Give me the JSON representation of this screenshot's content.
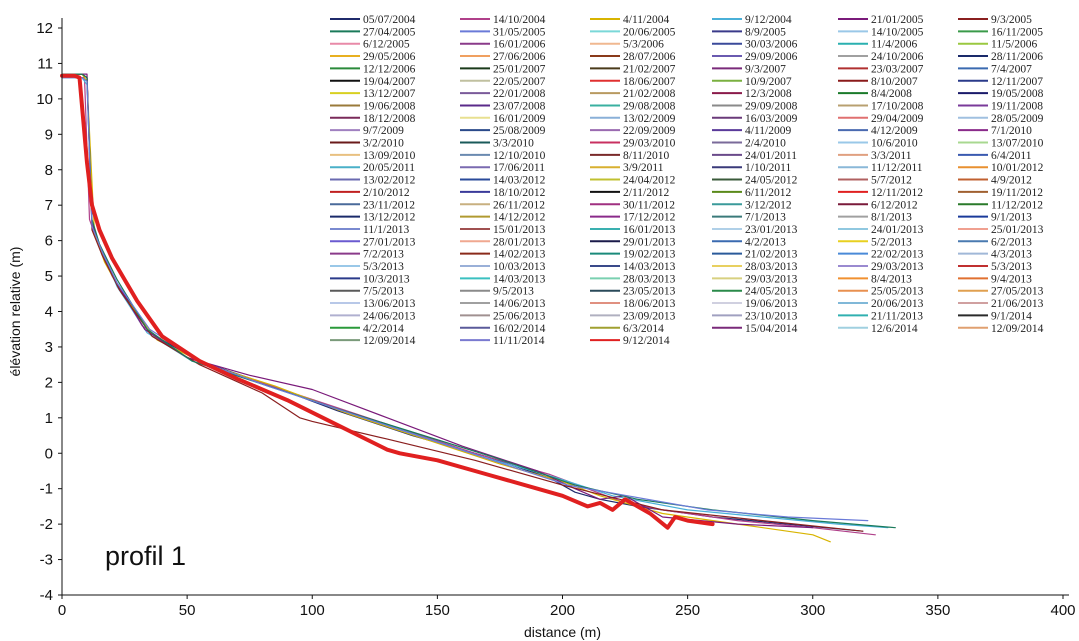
{
  "chart_data": {
    "type": "line",
    "xlabel": "distance (m)",
    "ylabel": "élévation relative (m)",
    "annotation": "profil 1",
    "xlim": [
      0,
      400
    ],
    "ylim": [
      -4,
      12
    ],
    "xticks": [
      0,
      50,
      100,
      150,
      200,
      250,
      300,
      350,
      400
    ],
    "yticks": [
      -4,
      -3,
      -2,
      -1,
      0,
      1,
      2,
      3,
      4,
      5,
      6,
      7,
      8,
      9,
      10,
      11,
      12
    ],
    "grid": false,
    "legend_position": "top-right",
    "legend_entries": [
      "05/07/2004",
      "14/10/2004",
      "4/11/2004",
      "9/12/2004",
      "21/01/2005",
      "9/3/2005",
      "27/04/2005",
      "31/05/2005",
      "20/06/2005",
      "8/9/2005",
      "14/10/2005",
      "16/11/2005",
      "6/12/2005",
      "16/01/2006",
      "5/3/2006",
      "30/03/2006",
      "11/4/2006",
      "11/5/2006",
      "29/05/2006",
      "27/06/2006",
      "28/07/2006",
      "29/09/2006",
      "24/10/2006",
      "28/11/2006",
      "12/12/2006",
      "25/01/2007",
      "21/02/2007",
      "9/3/2007",
      "23/03/2007",
      "7/4/2007",
      "19/04/2007",
      "22/05/2007",
      "18/06/2007",
      "10/9/2007",
      "8/10/2007",
      "12/11/2007",
      "13/12/2007",
      "22/01/2008",
      "21/02/2008",
      "12/3/2008",
      "8/4/2008",
      "19/05/2008",
      "19/06/2008",
      "23/07/2008",
      "29/08/2008",
      "29/09/2008",
      "17/10/2008",
      "19/11/2008",
      "18/12/2008",
      "16/01/2009",
      "13/02/2009",
      "16/03/2009",
      "29/04/2009",
      "28/05/2009",
      "9/7/2009",
      "25/08/2009",
      "22/09/2009",
      "4/11/2009",
      "4/12/2009",
      "7/1/2010",
      "3/2/2010",
      "3/3/2010",
      "29/03/2010",
      "2/4/2010",
      "10/6/2010",
      "13/07/2010",
      "13/09/2010",
      "12/10/2010",
      "8/11/2010",
      "24/01/2011",
      "3/3/2011",
      "6/4/2011",
      "20/05/2011",
      "17/06/2011",
      "3/9/2011",
      "1/10/2011",
      "11/12/2011",
      "10/01/2012",
      "13/02/2012",
      "14/03/2012",
      "24/04/2012",
      "24/05/2012",
      "5/7/2012",
      "4/9/2012",
      "2/10/2012",
      "18/10/2012",
      "2/11/2012",
      "6/11/2012",
      "12/11/2012",
      "19/11/2012",
      "23/11/2012",
      "26/11/2012",
      "30/11/2012",
      "3/12/2012",
      "6/12/2012",
      "11/12/2012",
      "13/12/2012",
      "14/12/2012",
      "17/12/2012",
      "7/1/2013",
      "8/1/2013",
      "9/1/2013",
      "11/1/2013",
      "15/01/2013",
      "16/01/2013",
      "23/01/2013",
      "24/01/2013",
      "25/01/2013",
      "27/01/2013",
      "28/01/2013",
      "29/01/2013",
      "4/2/2013",
      "5/2/2013",
      "6/2/2013",
      "7/2/2013",
      "14/02/2013",
      "19/02/2013",
      "21/02/2013",
      "22/02/2013",
      "4/3/2013",
      "5/3/2013",
      "10/03/2013",
      "14/03/2013",
      "28/03/2013",
      "29/03/2013",
      "5/3/2013",
      "10/3/2013",
      "14/03/2013",
      "28/03/2013",
      "29/03/2013",
      "8/4/2013",
      "9/4/2013",
      "7/5/2013",
      "9/5/2013",
      "23/05/2013",
      "24/05/2013",
      "25/05/2013",
      "27/05/2013",
      "13/06/2013",
      "14/06/2013",
      "18/06/2013",
      "19/06/2013",
      "20/06/2013",
      "21/06/2013",
      "24/06/2013",
      "25/06/2013",
      "23/09/2013",
      "23/10/2013",
      "21/11/2013",
      "9/1/2014",
      "4/2/2014",
      "16/02/2014",
      "6/3/2014",
      "15/04/2014",
      "12/6/2014",
      "12/09/2014",
      "12/09/2014",
      "11/11/2014",
      "9/12/2014"
    ],
    "legend_colors": [
      "#1f2a6b",
      "#b0408a",
      "#d8b400",
      "#4ab0d8",
      "#7a1a7a",
      "#8a1f1f",
      "#1a7a5a",
      "#6a7ad8",
      "#7ad8d8",
      "#3a3a8a",
      "#9ac8e8",
      "#3a9a4a",
      "#e88aa8",
      "#8a3a8a",
      "#f0b890",
      "#3a4a9a",
      "#2ab0b0",
      "#9ac840",
      "#e8b020",
      "#f0a060",
      "#8a3a1a",
      "#6a5ab0",
      "#a0a0a0",
      "#1a2a6a",
      "#2a8a3a",
      "#1a3a1a",
      "#4a3a1a",
      "#7a2a7a",
      "#b03030",
      "#3a6ab0",
      "#111111",
      "#c0c0a0",
      "#e03030",
      "#7ab040",
      "#8a1a1a",
      "#2a3a8a",
      "#d8d020",
      "#7a5a9a",
      "#b89a60",
      "#8a1a4a",
      "#1a7a2a",
      "#1a1a6a",
      "#9a7a3a",
      "#5a2a8a",
      "#3ab0a0",
      "#8a8a8a",
      "#b8a070",
      "#7a3a9a",
      "#7a2a5a",
      "#e8e090",
      "#8ab0d8",
      "#6a3a7a",
      "#e07070",
      "#a0c0e0",
      "#a080c0",
      "#2a4a8a",
      "#9a6ab0",
      "#5a3a9a",
      "#4a6ab0",
      "#8a2a8a",
      "#6a1a1a",
      "#1a5a5a",
      "#c83060",
      "#7a6a9a",
      "#9ac8e8",
      "#a8d890",
      "#e8c080",
      "#6a8ab0",
      "#7a2a2a",
      "#6a4a8a",
      "#e0a080",
      "#3a5ab0",
      "#4ab0c8",
      "#7a6ab0",
      "#d8b030",
      "#3a3a7a",
      "#8ab8d8",
      "#e89030",
      "#6a6ab0",
      "#2a4a9a",
      "#c0c030",
      "#3a5a3a",
      "#b06060",
      "#c06030",
      "#c02020",
      "#3a3a9a",
      "#111111",
      "#5a8a1a",
      "#e02020",
      "#a06030",
      "#4a6a9a",
      "#c8b080",
      "#a03080",
      "#3a9a9a",
      "#7a1a3a",
      "#2a7a2a",
      "#1a2a6a",
      "#b09a30",
      "#8a2a8a",
      "#3a7a7a",
      "#a0a0a0",
      "#1a3a9a",
      "#7a8ad0",
      "#a05050",
      "#3ab0b0",
      "#b0d0e8",
      "#90c8e0",
      "#f0a090",
      "#6a5ad0",
      "#f0a890",
      "#1a1a4a",
      "#3a6ab0",
      "#e8d020",
      "#4a7ab0",
      "#8a3a8a",
      "#8a2a1a",
      "#1a8a7a",
      "#2a5a9a",
      "#4a8ad8",
      "#a0b8d8",
      "#9ac8e8",
      "#9ab0d8",
      "#3a4a8a",
      "#e8d060",
      "#9a8ad0",
      "#c03030",
      "#2a3a8a",
      "#3ac0c0",
      "#7ad0b0",
      "#d8d080",
      "#f09030",
      "#e07030",
      "#5a5a5a",
      "#8a8a8a",
      "#2a4a5a",
      "#2a8a4a",
      "#e89050",
      "#e0a050",
      "#b8c8e8",
      "#a0a0a0",
      "#e09080",
      "#d0d0e0",
      "#80b8d8",
      "#d0a0a0",
      "#b0b0d0",
      "#a09090",
      "#b0b0c0",
      "#a0a0c0",
      "#30b0b0",
      "#2a2a2a",
      "#2a9a3a",
      "#5a5a9a",
      "#a0a030",
      "#7a2a7a",
      "#a0d0e0",
      "#e0a070",
      "#7a9a7a",
      "#7a7ad0",
      "#e02020"
    ],
    "series": [
      {
        "name": "05/07/2004",
        "color": "#1f2a6b",
        "width": 1.2,
        "x": [
          0,
          8,
          10,
          12,
          15,
          22,
          35,
          55,
          80,
          110,
          140,
          170,
          195,
          205,
          215,
          230,
          260,
          290,
          320
        ],
        "y": [
          10.7,
          10.7,
          10.6,
          6.4,
          5.8,
          4.8,
          3.4,
          2.6,
          2.0,
          1.2,
          0.5,
          -0.1,
          -0.7,
          -1.1,
          -1.3,
          -1.5,
          -1.8,
          -2.0,
          -2.2
        ]
      },
      {
        "name": "14/10/2004",
        "color": "#b0408a",
        "width": 1.2,
        "x": [
          0,
          7,
          9,
          11,
          14,
          20,
          32,
          50,
          75,
          105,
          135,
          165,
          195,
          210,
          225,
          240,
          270,
          300,
          325
        ],
        "y": [
          10.6,
          10.6,
          10.6,
          6.6,
          6.0,
          5.0,
          3.6,
          2.7,
          2.1,
          1.4,
          0.7,
          0.0,
          -0.6,
          -1.0,
          -1.4,
          -1.6,
          -1.9,
          -2.1,
          -2.3
        ]
      },
      {
        "name": "4/11/2004",
        "color": "#d8b400",
        "width": 1.2,
        "x": [
          0,
          8,
          10,
          13,
          17,
          24,
          38,
          58,
          85,
          115,
          145,
          175,
          200,
          215,
          240,
          270,
          300,
          307
        ],
        "y": [
          10.7,
          10.7,
          10.5,
          6.2,
          5.4,
          4.5,
          3.2,
          2.5,
          1.9,
          1.1,
          0.4,
          -0.3,
          -0.8,
          -1.2,
          -1.7,
          -2.0,
          -2.3,
          -2.5
        ]
      },
      {
        "name": "9/12/2004",
        "color": "#4ab0d8",
        "width": 1.2,
        "x": [
          0,
          8,
          10,
          12,
          16,
          22,
          34,
          52,
          78,
          108,
          138,
          168,
          198,
          220,
          250,
          280,
          310,
          330
        ],
        "y": [
          10.6,
          10.6,
          10.4,
          6.5,
          5.7,
          4.7,
          3.4,
          2.6,
          2.0,
          1.3,
          0.6,
          -0.1,
          -0.7,
          -1.2,
          -1.6,
          -1.8,
          -2.0,
          -2.1
        ]
      },
      {
        "name": "21/01/2005",
        "color": "#7a1a7a",
        "width": 1.2,
        "x": [
          0,
          8,
          10,
          12,
          15,
          21,
          33,
          50,
          75,
          100,
          130,
          160,
          190,
          205,
          215,
          225,
          240,
          270,
          300
        ],
        "y": [
          10.7,
          10.7,
          10.7,
          6.5,
          5.9,
          4.9,
          3.5,
          2.7,
          2.2,
          1.8,
          1.0,
          0.2,
          -0.5,
          -1.0,
          -1.3,
          -1.2,
          -1.8,
          -2.0,
          -2.1
        ]
      },
      {
        "name": "9/3/2005",
        "color": "#8a1f1f",
        "width": 1.2,
        "x": [
          0,
          8,
          10,
          12,
          16,
          23,
          36,
          55,
          80,
          95,
          100,
          130,
          165,
          200,
          240,
          280,
          320
        ],
        "y": [
          10.7,
          10.7,
          10.6,
          6.3,
          5.6,
          4.6,
          3.3,
          2.5,
          1.7,
          1.0,
          0.9,
          0.4,
          -0.2,
          -0.9,
          -1.6,
          -1.9,
          -2.2
        ]
      },
      {
        "name": "27/04/2005",
        "color": "#1a7a5a",
        "width": 1.2,
        "x": [
          0,
          8,
          10,
          12,
          15,
          22,
          34,
          52,
          78,
          108,
          140,
          172,
          205,
          230,
          260,
          300,
          333
        ],
        "y": [
          10.7,
          10.7,
          10.6,
          6.6,
          5.9,
          4.9,
          3.5,
          2.6,
          2.0,
          1.3,
          0.6,
          -0.1,
          -0.9,
          -1.3,
          -1.6,
          -1.9,
          -2.1
        ]
      },
      {
        "name": "31/05/2005",
        "color": "#6a7ad8",
        "width": 1.2,
        "x": [
          0,
          8,
          10,
          12,
          16,
          22,
          35,
          55,
          82,
          112,
          142,
          172,
          202,
          226,
          258,
          290,
          322
        ],
        "y": [
          10.6,
          10.6,
          10.5,
          6.4,
          5.7,
          4.8,
          3.5,
          2.6,
          1.9,
          1.2,
          0.5,
          -0.2,
          -0.9,
          -1.2,
          -1.6,
          -1.8,
          -1.9
        ]
      },
      {
        "name": "9/12/2014",
        "color": "#e02020",
        "width": 4,
        "x": [
          0,
          5,
          7,
          10,
          12,
          15,
          20,
          30,
          40,
          55,
          70,
          90,
          110,
          130,
          135,
          150,
          170,
          190,
          200,
          210,
          215,
          220,
          225,
          235,
          242,
          245,
          250,
          260
        ],
        "y": [
          10.65,
          10.65,
          10.6,
          8.2,
          7.0,
          6.3,
          5.5,
          4.3,
          3.3,
          2.6,
          2.1,
          1.5,
          0.8,
          0.1,
          0.0,
          -0.2,
          -0.6,
          -1.0,
          -1.2,
          -1.5,
          -1.4,
          -1.6,
          -1.3,
          -1.7,
          -2.1,
          -1.8,
          -1.9,
          -2.0
        ]
      }
    ]
  }
}
